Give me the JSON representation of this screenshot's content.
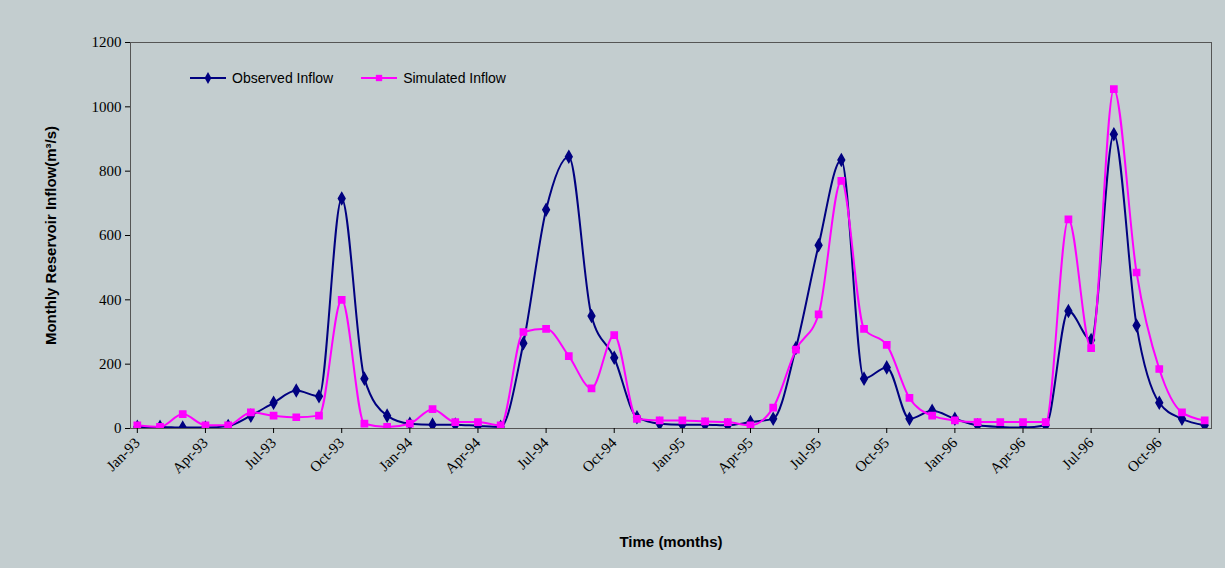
{
  "chart_data": {
    "type": "line",
    "x_label": "Time (months)",
    "y_label": "Monthly Reservoir Inflow(m³/s)",
    "x": [
      "1993-01",
      "1993-02",
      "1993-03",
      "1993-04",
      "1993-05",
      "1993-06",
      "1993-07",
      "1993-08",
      "1993-09",
      "1993-10",
      "1993-11",
      "1993-12",
      "1994-01",
      "1994-02",
      "1994-03",
      "1994-04",
      "1994-05",
      "1994-06",
      "1994-07",
      "1994-08",
      "1994-09",
      "1994-10",
      "1994-11",
      "1994-12",
      "1995-01",
      "1995-02",
      "1995-03",
      "1995-04",
      "1995-05",
      "1995-06",
      "1995-07",
      "1995-08",
      "1995-09",
      "1995-10",
      "1995-11",
      "1995-12",
      "1996-01",
      "1996-02",
      "1996-03",
      "1996-04",
      "1996-05",
      "1996-06",
      "1996-07",
      "1996-08",
      "1996-09",
      "1996-10",
      "1996-11",
      "1996-12"
    ],
    "series": [
      {
        "name": "Observed Inflow",
        "color": "#000080",
        "marker": "diamond",
        "values": [
          5,
          5,
          3,
          3,
          8,
          40,
          80,
          118,
          100,
          715,
          155,
          40,
          15,
          12,
          12,
          8,
          5,
          265,
          680,
          845,
          350,
          220,
          35,
          15,
          12,
          12,
          10,
          20,
          30,
          250,
          570,
          835,
          155,
          190,
          30,
          55,
          30,
          10,
          5,
          3,
          10,
          365,
          275,
          915,
          320,
          80,
          30,
          10
        ]
      },
      {
        "name": "Simulated Inflow",
        "color": "#ff00ff",
        "marker": "square",
        "values": [
          10,
          5,
          45,
          10,
          10,
          50,
          40,
          35,
          40,
          400,
          15,
          5,
          15,
          60,
          20,
          20,
          10,
          300,
          310,
          225,
          125,
          290,
          30,
          25,
          25,
          22,
          20,
          10,
          65,
          245,
          355,
          770,
          310,
          260,
          95,
          40,
          25,
          20,
          20,
          20,
          20,
          650,
          250,
          1055,
          485,
          185,
          50,
          25
        ]
      }
    ],
    "xticks": [
      {
        "value": "1993-01",
        "label": "Jan-93"
      },
      {
        "value": "1993-04",
        "label": "Apr-93"
      },
      {
        "value": "1993-07",
        "label": "Jul-93"
      },
      {
        "value": "1993-10",
        "label": "Oct-93"
      },
      {
        "value": "1994-01",
        "label": "Jan-94"
      },
      {
        "value": "1994-04",
        "label": "Apr-94"
      },
      {
        "value": "1994-07",
        "label": "Jul-94"
      },
      {
        "value": "1994-10",
        "label": "Oct-94"
      },
      {
        "value": "1995-01",
        "label": "Jan-95"
      },
      {
        "value": "1995-04",
        "label": "Apr-95"
      },
      {
        "value": "1995-07",
        "label": "Jul-95"
      },
      {
        "value": "1995-10",
        "label": "Oct-95"
      },
      {
        "value": "1996-01",
        "label": "Jan-96"
      },
      {
        "value": "1996-04",
        "label": "Apr-96"
      },
      {
        "value": "1996-07",
        "label": "Jul-96"
      },
      {
        "value": "1996-10",
        "label": "Oct-96"
      }
    ],
    "ylim": [
      0,
      1200
    ],
    "yticks": [
      0,
      200,
      400,
      600,
      800,
      1000,
      1200
    ],
    "legend": "upper left",
    "grid": false
  }
}
